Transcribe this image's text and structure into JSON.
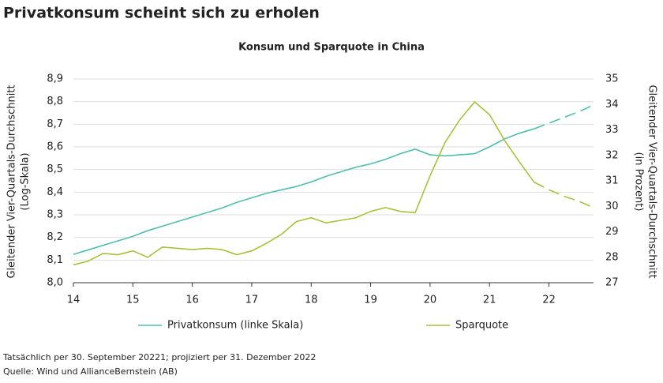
{
  "chart_data": {
    "type": "line",
    "title": "Privatkonsum scheint sich zu erholen",
    "subtitle": "Konsum und Sparquote in China",
    "ylabel": [
      "Gleitender Vier-Quartals-Durchschnitt",
      "(Log-Skala)"
    ],
    "y2label": [
      "Gleitender Vier-Quartals-Durchschnitt",
      "(in Prozent)"
    ],
    "notes": [
      "Tatsächlich per 30. September 20221; projiziert per 31. Dezember 2022",
      "Quelle: Wind und AllianceBernstein (AB)"
    ],
    "x": [
      14,
      14.25,
      14.5,
      14.75,
      15,
      15.25,
      15.5,
      15.75,
      16,
      16.25,
      16.5,
      16.75,
      17,
      17.25,
      17.5,
      17.75,
      18,
      18.25,
      18.5,
      18.75,
      19,
      19.25,
      19.5,
      19.75,
      20,
      20.25,
      20.5,
      20.75,
      21,
      21.25,
      21.5,
      21.75,
      22,
      22.25,
      22.5,
      22.75
    ],
    "xlim": [
      14,
      22.75
    ],
    "xticks": [
      14,
      15,
      16,
      17,
      18,
      19,
      20,
      21,
      22
    ],
    "ylim": [
      8.0,
      8.9
    ],
    "yticks": [
      {
        "value": 8.0,
        "label": "8,0"
      },
      {
        "value": 8.1,
        "label": "8,1"
      },
      {
        "value": 8.2,
        "label": "8,2"
      },
      {
        "value": 8.3,
        "label": "8,3"
      },
      {
        "value": 8.4,
        "label": "8,4"
      },
      {
        "value": 8.5,
        "label": "8,5"
      },
      {
        "value": 8.6,
        "label": "8,6"
      },
      {
        "value": 8.7,
        "label": "8,7"
      },
      {
        "value": 8.8,
        "label": "8,8"
      },
      {
        "value": 8.9,
        "label": "8,9"
      }
    ],
    "y2lim": [
      27,
      35
    ],
    "y2ticks": [
      27,
      28,
      29,
      30,
      31,
      32,
      33,
      34,
      35
    ],
    "grid": true,
    "projection_start": 21.75,
    "series": [
      {
        "name": "Privatkonsum (linke Skala)",
        "color": "#4fbfb0",
        "values": [
          8.125,
          8.145,
          8.165,
          8.185,
          8.205,
          8.23,
          8.25,
          8.27,
          8.29,
          8.31,
          8.33,
          8.355,
          8.375,
          8.395,
          8.41,
          8.425,
          8.445,
          8.47,
          8.49,
          8.51,
          8.525,
          8.545,
          8.57,
          8.59,
          8.565,
          8.56,
          8.565,
          8.57,
          8.6,
          8.635,
          8.66,
          8.68,
          8.705,
          8.73,
          8.755,
          8.785
        ]
      },
      {
        "name": "Sparquote",
        "color": "#a6c23a",
        "axis": "y2",
        "values": [
          27.7,
          27.85,
          28.15,
          28.1,
          28.25,
          28.0,
          28.4,
          28.35,
          28.3,
          28.35,
          28.3,
          28.1,
          28.25,
          28.55,
          28.9,
          29.4,
          29.55,
          29.35,
          29.45,
          29.55,
          29.8,
          29.95,
          29.8,
          29.75,
          31.2,
          32.5,
          33.4,
          34.1,
          33.6,
          32.6,
          31.75,
          30.95,
          30.65,
          30.4,
          30.2,
          29.95
        ]
      }
    ]
  }
}
